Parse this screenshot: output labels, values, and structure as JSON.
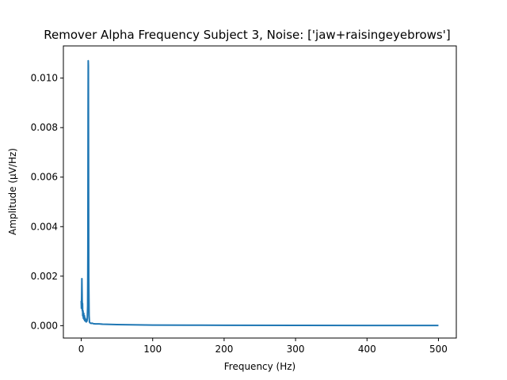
{
  "chart_data": {
    "type": "line",
    "title": "Remover Alpha Frequency Subject 3, Noise: ['jaw+raisingeyebrows']",
    "xlabel": "Frequency (Hz)",
    "ylabel": "Amplitude (μV/Hz)",
    "xlim": [
      -25,
      525
    ],
    "ylim": [
      -0.0005,
      0.0113
    ],
    "xticks": [
      0,
      100,
      200,
      300,
      400,
      500
    ],
    "xtick_labels": [
      "0",
      "100",
      "200",
      "300",
      "400",
      "500"
    ],
    "yticks": [
      0.0,
      0.002,
      0.004,
      0.006,
      0.008,
      0.01
    ],
    "ytick_labels": [
      "0.000",
      "0.002",
      "0.004",
      "0.006",
      "0.008",
      "0.010"
    ],
    "grid": false,
    "series": [
      {
        "color": "#1f77b4",
        "x": [
          0,
          0.3,
          0.6,
          0.9,
          1.2,
          1.5,
          1.8,
          2.1,
          2.5,
          3,
          3.5,
          4,
          4.5,
          5,
          5.5,
          6,
          6.5,
          7,
          7.5,
          8,
          8.5,
          9,
          9.3,
          9.6,
          9.8,
          10,
          10.2,
          10.5,
          11,
          11.5,
          12,
          13,
          14,
          15,
          17,
          20,
          25,
          30,
          40,
          50,
          60,
          80,
          100,
          150,
          200,
          300,
          400,
          500
        ],
        "y": [
          0.001,
          0.0007,
          0.0012,
          0.0019,
          0.0013,
          0.0006,
          0.0009,
          0.0004,
          0.0006,
          0.0003,
          0.0005,
          0.00025,
          0.0004,
          0.0002,
          0.0003,
          0.00018,
          0.00025,
          0.00015,
          0.0002,
          0.00018,
          0.0003,
          0.0008,
          0.003,
          0.0085,
          0.0107,
          0.0105,
          0.0072,
          0.002,
          0.0004,
          0.00015,
          0.00012,
          0.0001,
          9e-05,
          0.0001,
          8e-05,
          7e-05,
          7e-05,
          6e-05,
          5e-05,
          4.5e-05,
          4e-05,
          3e-05,
          2.5e-05,
          2e-05,
          1.5e-05,
          1e-05,
          8e-06,
          6e-06
        ]
      }
    ]
  }
}
